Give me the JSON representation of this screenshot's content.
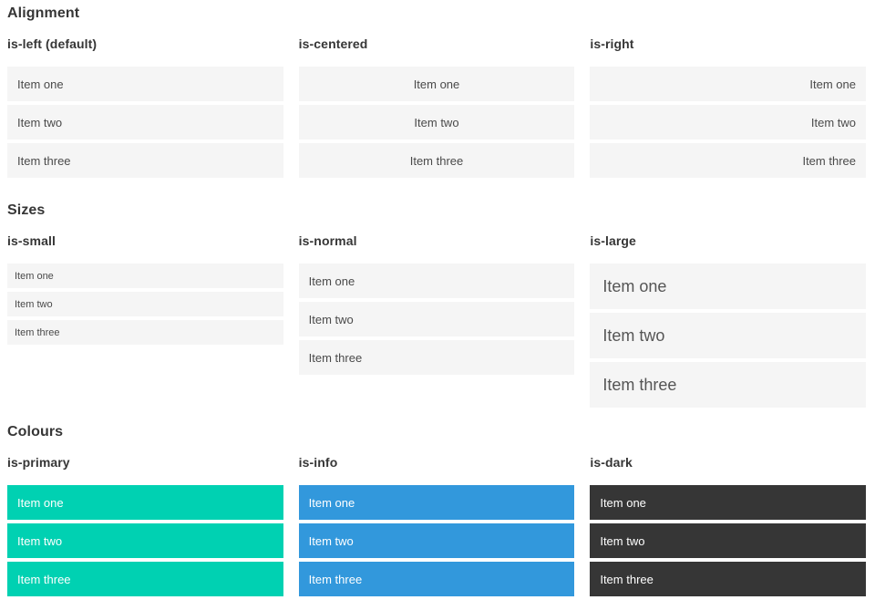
{
  "sections": [
    {
      "title": "Alignment",
      "groups": [
        {
          "label": "is-left (default)",
          "items": [
            "Item one",
            "Item two",
            "Item three"
          ]
        },
        {
          "label": "is-centered",
          "items": [
            "Item one",
            "Item two",
            "Item three"
          ]
        },
        {
          "label": "is-right",
          "items": [
            "Item one",
            "Item two",
            "Item three"
          ]
        }
      ]
    },
    {
      "title": "Sizes",
      "groups": [
        {
          "label": "is-small",
          "items": [
            "Item one",
            "Item two",
            "Item three"
          ]
        },
        {
          "label": "is-normal",
          "items": [
            "Item one",
            "Item two",
            "Item three"
          ]
        },
        {
          "label": "is-large",
          "items": [
            "Item one",
            "Item two",
            "Item three"
          ]
        }
      ]
    },
    {
      "title": "Colours",
      "groups": [
        {
          "label": "is-primary",
          "items": [
            "Item one",
            "Item two",
            "Item three"
          ]
        },
        {
          "label": "is-info",
          "items": [
            "Item one",
            "Item two",
            "Item three"
          ]
        },
        {
          "label": "is-dark",
          "items": [
            "Item one",
            "Item two",
            "Item three"
          ]
        }
      ]
    }
  ],
  "colors": {
    "primary": "#00d1b2",
    "info": "#3298dc",
    "dark": "#363636",
    "item-bg": "#f5f5f5",
    "item-text": "#4a4a4a",
    "heading-text": "#363636"
  }
}
